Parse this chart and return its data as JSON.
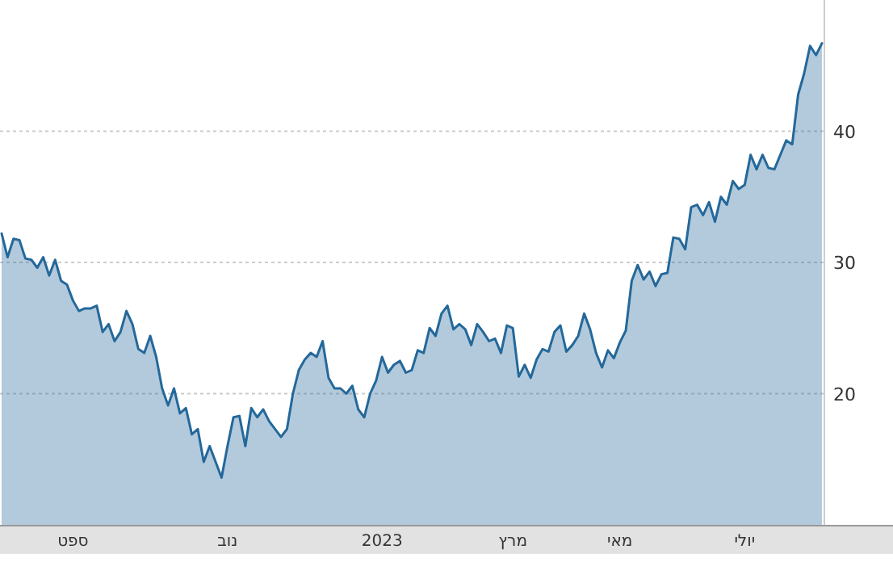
{
  "chart_data": {
    "type": "area",
    "categories": [
      null,
      null,
      null,
      null,
      null,
      null,
      null,
      null,
      null,
      null,
      null,
      null,
      "ספט",
      null,
      null,
      null,
      null,
      null,
      null,
      null,
      null,
      null,
      null,
      null,
      null,
      null,
      null,
      null,
      null,
      null,
      null,
      null,
      null,
      null,
      null,
      null,
      null,
      null,
      "נוב",
      null,
      null,
      null,
      null,
      null,
      null,
      null,
      null,
      null,
      null,
      null,
      null,
      null,
      null,
      null,
      null,
      null,
      null,
      null,
      null,
      null,
      null,
      null,
      null,
      null,
      "2023",
      null,
      null,
      null,
      null,
      null,
      null,
      null,
      null,
      null,
      null,
      null,
      null,
      null,
      null,
      null,
      null,
      null,
      null,
      null,
      null,
      null,
      "מרץ",
      null,
      null,
      null,
      null,
      null,
      null,
      null,
      null,
      null,
      null,
      null,
      null,
      null,
      null,
      null,
      null,
      null,
      "מאי",
      null,
      null,
      null,
      null,
      null,
      null,
      null,
      null,
      null,
      null,
      null,
      null,
      null,
      null,
      null,
      null,
      null,
      null,
      null,
      null,
      "יולי",
      null,
      null,
      null,
      null,
      null,
      null,
      null,
      null,
      null,
      null,
      null,
      null,
      null
    ],
    "series": [
      {
        "color": "#24689a",
        "values": [
          32.2,
          30.4,
          31.8,
          31.7,
          30.3,
          30.2,
          29.6,
          30.4,
          29.0,
          30.2,
          28.6,
          28.3,
          27.1,
          26.3,
          26.5,
          26.5,
          26.7,
          24.7,
          25.3,
          24.0,
          24.7,
          26.3,
          25.3,
          23.4,
          23.1,
          24.4,
          22.8,
          20.4,
          19.1,
          20.4,
          18.5,
          18.9,
          16.9,
          17.3,
          14.8,
          16.0,
          14.8,
          13.6,
          16.0,
          18.2,
          18.3,
          16.0,
          18.9,
          18.2,
          18.8,
          17.9,
          17.3,
          16.7,
          17.3,
          20.0,
          21.8,
          22.6,
          23.1,
          22.8,
          24.0,
          21.2,
          20.4,
          20.4,
          20.0,
          20.6,
          18.8,
          18.2,
          20.0,
          21.0,
          22.8,
          21.6,
          22.2,
          22.5,
          21.6,
          21.8,
          23.3,
          23.1,
          25.0,
          24.4,
          26.1,
          26.7,
          24.9,
          25.3,
          24.9,
          23.7,
          25.3,
          24.7,
          24.0,
          24.2,
          23.1,
          25.2,
          25.0,
          21.3,
          22.2,
          21.2,
          22.6,
          23.4,
          23.2,
          24.7,
          25.2,
          23.2,
          23.7,
          24.4,
          26.1,
          24.9,
          23.1,
          22.0,
          23.3,
          22.7,
          23.9,
          24.8,
          28.6,
          29.8,
          28.7,
          29.3,
          28.2,
          29.1,
          29.2,
          31.9,
          31.8,
          31.0,
          34.2,
          34.4,
          33.6,
          34.6,
          33.1,
          35.0,
          34.4,
          36.2,
          35.6,
          35.9,
          38.2,
          37.1,
          38.2,
          37.2,
          37.1,
          38.2,
          39.3,
          39.0,
          42.8,
          44.4,
          46.5,
          45.8,
          46.7
        ]
      }
    ],
    "ylim": [
      10,
      50
    ],
    "yticks": [
      20,
      30,
      40
    ],
    "grid": "y"
  }
}
